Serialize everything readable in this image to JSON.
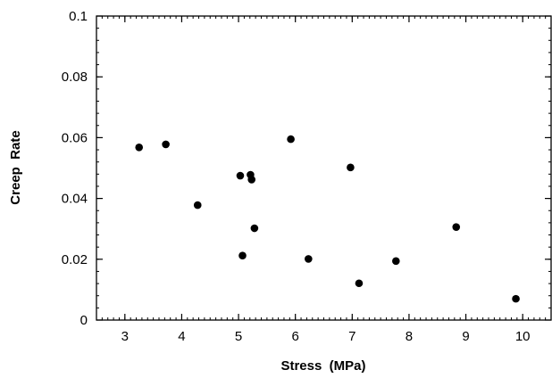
{
  "chart_data": {
    "type": "scatter",
    "title": "",
    "xlabel": "Stress  (MPa)",
    "ylabel": "Creep  Rate",
    "xlim": [
      2.5,
      10.5
    ],
    "ylim": [
      0,
      0.1
    ],
    "x_ticks": [
      3,
      4,
      5,
      6,
      7,
      8,
      9,
      10
    ],
    "y_ticks": [
      0,
      0.02,
      0.04,
      0.06,
      0.08,
      0.1
    ],
    "y_tick_labels": [
      "0",
      "0.02",
      "0.04",
      "0.06",
      "0.08",
      "0.1"
    ],
    "grid": false,
    "legend": "none",
    "marker_color": "#000000",
    "points": [
      {
        "x": 3.25,
        "y": 0.0568
      },
      {
        "x": 3.72,
        "y": 0.0578
      },
      {
        "x": 4.28,
        "y": 0.0378
      },
      {
        "x": 5.03,
        "y": 0.0475
      },
      {
        "x": 5.07,
        "y": 0.0212
      },
      {
        "x": 5.21,
        "y": 0.0478
      },
      {
        "x": 5.23,
        "y": 0.0462
      },
      {
        "x": 5.28,
        "y": 0.0302
      },
      {
        "x": 5.92,
        "y": 0.0595
      },
      {
        "x": 6.23,
        "y": 0.0201
      },
      {
        "x": 6.97,
        "y": 0.0502
      },
      {
        "x": 7.12,
        "y": 0.0121
      },
      {
        "x": 7.77,
        "y": 0.0194
      },
      {
        "x": 8.83,
        "y": 0.0306
      },
      {
        "x": 9.88,
        "y": 0.007
      }
    ]
  }
}
